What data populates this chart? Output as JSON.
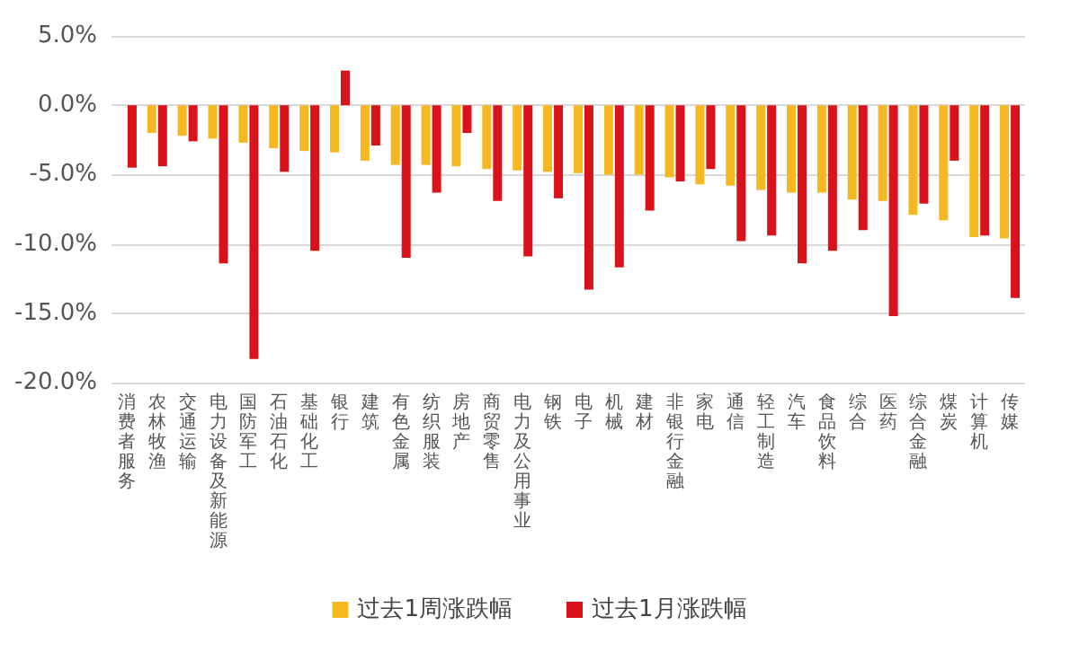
{
  "chart_data": {
    "type": "bar",
    "categories": [
      "消费者服务",
      "农林牧渔",
      "交通运输",
      "电力设备及新能源",
      "国防军工",
      "石油石化",
      "基础化工",
      "银行",
      "建筑",
      "有色金属",
      "纺织服装",
      "房地产",
      "商贸零售",
      "电力及公用事业",
      "钢铁",
      "电子",
      "机械",
      "建材",
      "非银行金融",
      "家电",
      "通信",
      "轻工制造",
      "汽车",
      "食品饮料",
      "综合",
      "医药",
      "综合金融",
      "煤炭",
      "计算机",
      "传媒"
    ],
    "series": [
      {
        "name": "过去1周涨跌幅",
        "color": "#f5b820",
        "values": [
          0,
          -2.0,
          -2.2,
          -2.4,
          -2.7,
          -3.1,
          -3.3,
          -3.4,
          -4.0,
          -4.3,
          -4.3,
          -4.4,
          -4.6,
          -4.7,
          -4.8,
          -4.9,
          -5.0,
          -5.0,
          -5.2,
          -5.7,
          -5.8,
          -6.1,
          -6.3,
          -6.3,
          -6.8,
          -6.9,
          -7.9,
          -8.3,
          -9.5,
          -9.6
        ]
      },
      {
        "name": "过去1月涨跌幅",
        "color": "#d9121b",
        "values": [
          -4.5,
          -4.4,
          -2.6,
          -11.4,
          -18.3,
          -4.8,
          -10.5,
          2.5,
          -2.9,
          -11.0,
          -6.3,
          -2.0,
          -6.9,
          -10.9,
          -6.7,
          -13.3,
          -11.7,
          -7.6,
          -5.5,
          -4.6,
          -9.8,
          -9.4,
          -11.4,
          -10.5,
          -9.0,
          -15.2,
          -7.1,
          -4.0,
          -9.4,
          -13.9
        ]
      }
    ],
    "ylim": [
      -20,
      5
    ],
    "yticks": [
      {
        "value": -20,
        "label": "-20.0%"
      },
      {
        "value": -15,
        "label": "-15.0%"
      },
      {
        "value": -10,
        "label": "-10.0%"
      },
      {
        "value": -5,
        "label": "-5.0%"
      },
      {
        "value": 0,
        "label": "0.0%"
      },
      {
        "value": 5,
        "label": "5.0%"
      }
    ],
    "grid": "y",
    "legend": "bottom"
  }
}
